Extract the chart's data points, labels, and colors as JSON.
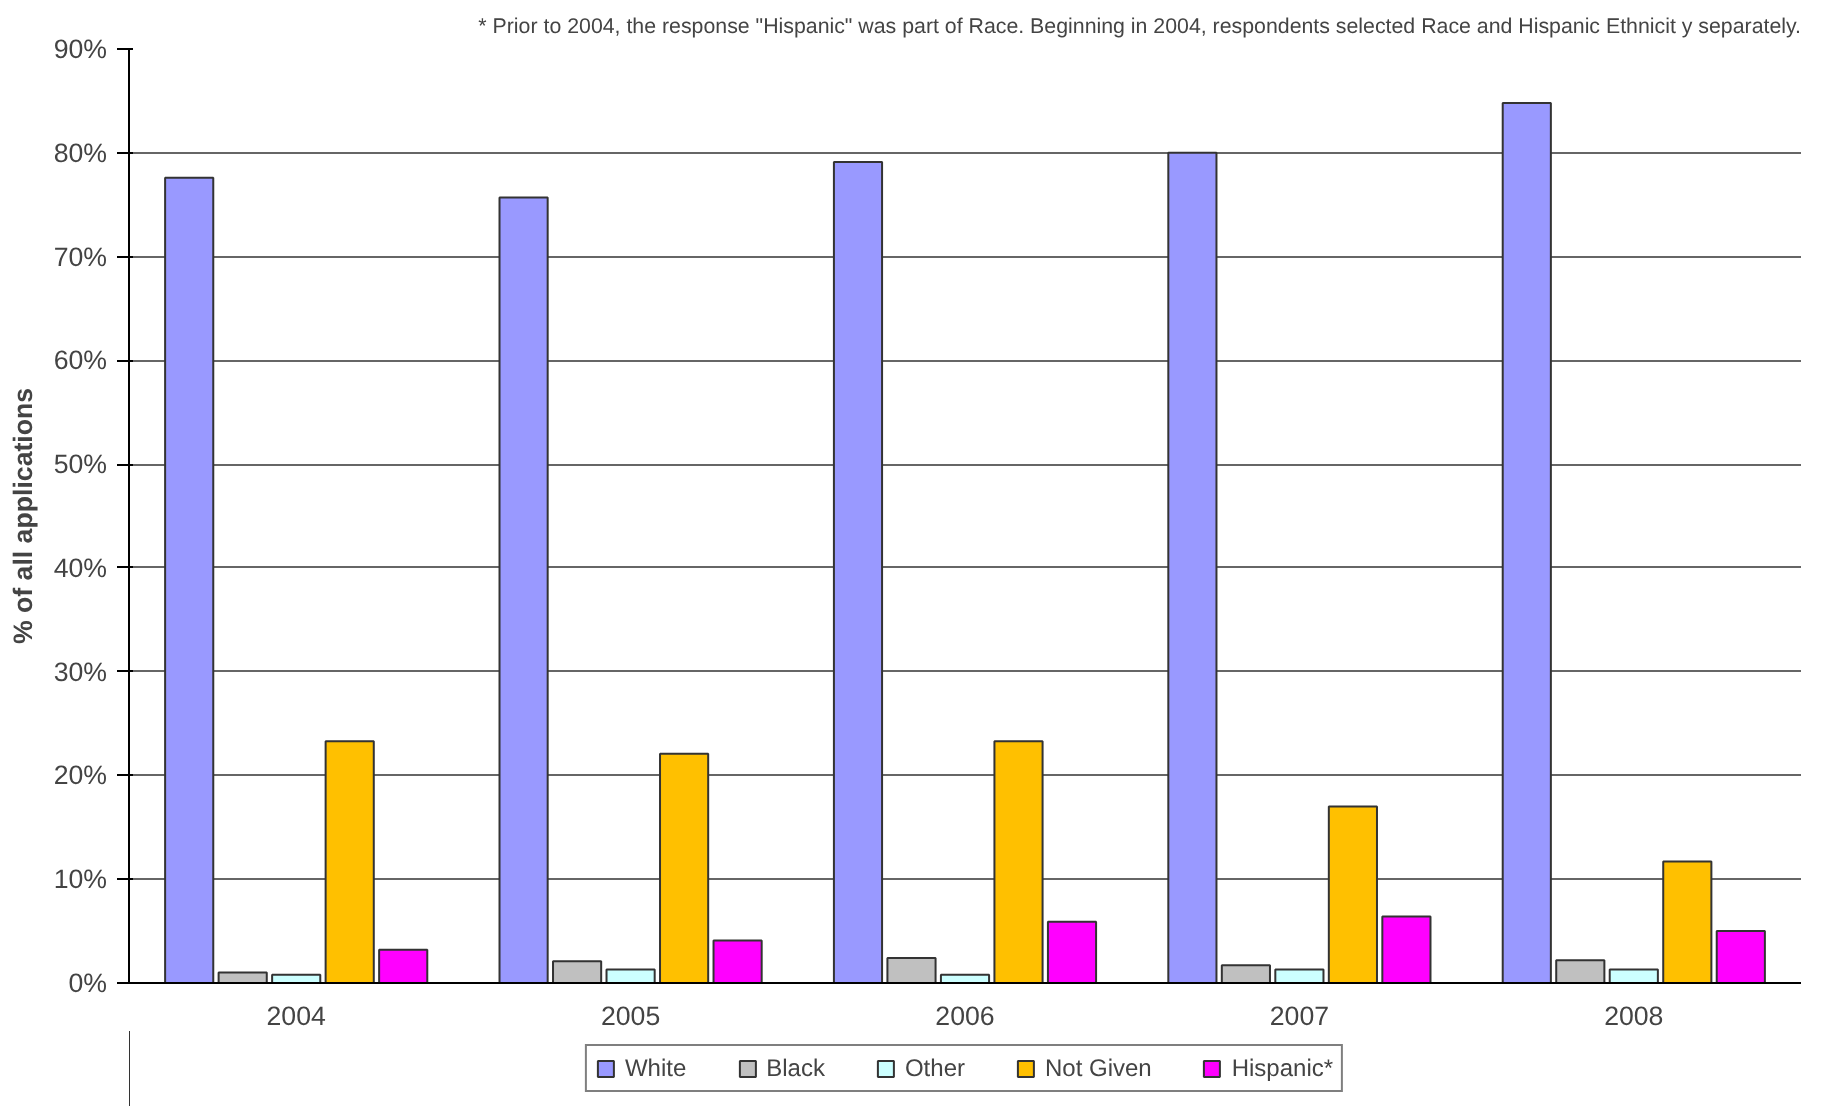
{
  "chart_data": {
    "type": "bar",
    "annotations": [
      "* Prior to 2004, the response \"Hispanic\" was part of Race. Beginning in 2004, respondents selected Race and Hispanic Ethnicit y separately."
    ],
    "ylabel": "% of all applications",
    "categories": [
      "2004",
      "2005",
      "2006",
      "2007",
      "2008"
    ],
    "series": [
      {
        "name": "White",
        "color": "#9999ff",
        "values": [
          77.6,
          75.7,
          79.1,
          80.0,
          84.8
        ]
      },
      {
        "name": "Black",
        "color": "#c0c0c0",
        "values": [
          1.0,
          2.1,
          2.4,
          1.7,
          2.2
        ]
      },
      {
        "name": "Other",
        "color": "#ccffff",
        "values": [
          0.8,
          1.3,
          0.8,
          1.3,
          1.3
        ]
      },
      {
        "name": "Not Given",
        "color": "#ffc000",
        "values": [
          23.3,
          22.1,
          23.3,
          17.0,
          11.7
        ]
      },
      {
        "name": "Hispanic*",
        "color": "#ff00ff",
        "values": [
          3.2,
          4.1,
          5.9,
          6.4,
          5.0
        ]
      }
    ],
    "ylim": [
      0,
      90
    ],
    "yticks": [
      {
        "value": 0,
        "label": "0%"
      },
      {
        "value": 10,
        "label": "10%"
      },
      {
        "value": 20,
        "label": "20%"
      },
      {
        "value": 30,
        "label": "30%"
      },
      {
        "value": 40,
        "label": "40%"
      },
      {
        "value": 50,
        "label": "50%"
      },
      {
        "value": 60,
        "label": "60%"
      },
      {
        "value": 70,
        "label": "70%"
      },
      {
        "value": 80,
        "label": "80%"
      },
      {
        "value": 90,
        "label": "90%"
      }
    ],
    "grid": "y",
    "legend": "bottom"
  }
}
